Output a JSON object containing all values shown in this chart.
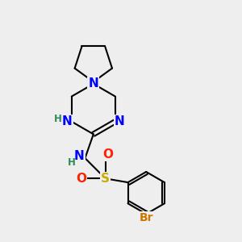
{
  "bg_color": "#eeeeee",
  "bond_color": "#000000",
  "bond_width": 1.5,
  "atom_colors": {
    "N": "#0000ff",
    "H": "#2e8b57",
    "S": "#ccaa00",
    "O": "#ff2200",
    "Br": "#cc7700",
    "C": "#000000"
  },
  "font_size_atoms": 11,
  "font_size_small": 8.5,
  "font_size_br": 10
}
